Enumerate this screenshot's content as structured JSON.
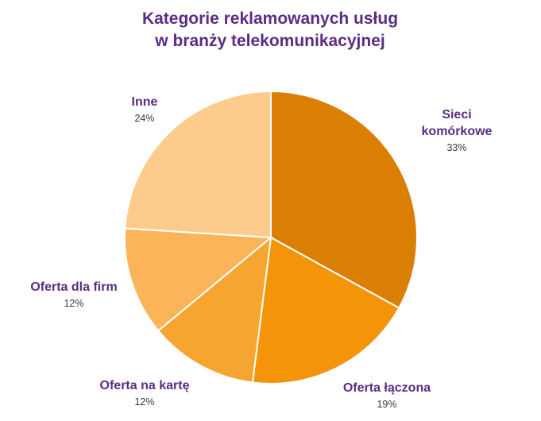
{
  "chart_data": {
    "type": "pie",
    "title_lines": [
      "Kategorie reklamowanych usług",
      "w branży telekomunikacyjnej"
    ],
    "slices": [
      {
        "label_lines": [
          "Sieci",
          "komórkowe"
        ],
        "percent_label": "33%",
        "value": 33,
        "color": "#DB7F04"
      },
      {
        "label_lines": [
          "Oferta łączona"
        ],
        "percent_label": "19%",
        "value": 19,
        "color": "#F39409"
      },
      {
        "label_lines": [
          "Oferta na kartę"
        ],
        "percent_label": "12%",
        "value": 12,
        "color": "#F7A531"
      },
      {
        "label_lines": [
          "Oferta dla firm"
        ],
        "percent_label": "12%",
        "value": 12,
        "color": "#FBB458"
      },
      {
        "label_lines": [
          "Inne"
        ],
        "percent_label": "24%",
        "value": 24,
        "color": "#FDCC8C"
      }
    ],
    "legend": "none"
  },
  "colors": {
    "title": "#5B2C83",
    "labels": "#5B2C83",
    "slice_border": "#ffffff"
  }
}
